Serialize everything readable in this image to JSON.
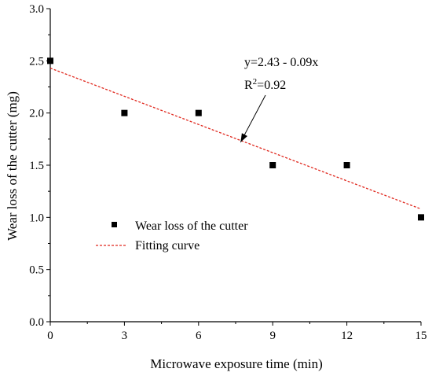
{
  "chart_data": {
    "type": "scatter",
    "xlabel": "Microwave exposure time (min)",
    "ylabel": "Wear loss of the cutter (mg)",
    "xlim": [
      0,
      15
    ],
    "ylim": [
      0.0,
      3.0
    ],
    "x_ticks": [
      "0",
      "3",
      "6",
      "9",
      "12",
      "15"
    ],
    "y_ticks": [
      "0.0",
      "0.5",
      "1.0",
      "1.5",
      "2.0",
      "2.5",
      "3.0"
    ],
    "grid": false,
    "legend_position": "center-left",
    "series": [
      {
        "name": "Wear loss of the cutter",
        "kind": "scatter",
        "marker": "square",
        "color": "#000000",
        "points": [
          {
            "x": 0,
            "y": 2.5
          },
          {
            "x": 3,
            "y": 2.0
          },
          {
            "x": 6,
            "y": 2.0
          },
          {
            "x": 9,
            "y": 1.5
          },
          {
            "x": 12,
            "y": 1.5
          },
          {
            "x": 15,
            "y": 1.0
          }
        ]
      },
      {
        "name": "Fitting curve",
        "kind": "line",
        "style": "dashed",
        "color": "#e0281e",
        "x": [
          0,
          15
        ],
        "y": [
          2.43,
          1.08
        ]
      }
    ],
    "annotation": {
      "equation": "y=2.43 - 0.09x",
      "r2_prefix": "R",
      "r2_exponent": "2",
      "r2_value": "=0.92",
      "arrow_target": {
        "x": 7.7,
        "y": 1.72
      }
    }
  }
}
